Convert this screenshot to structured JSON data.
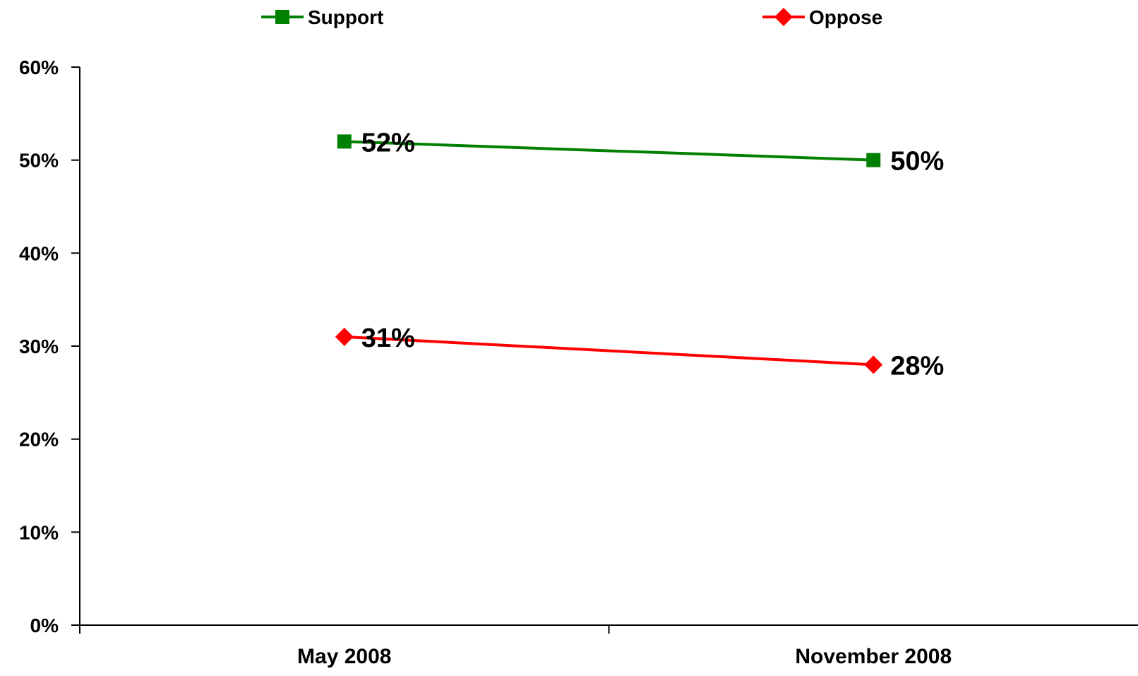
{
  "chart_data": {
    "type": "line",
    "categories": [
      "May 2008",
      "November 2008"
    ],
    "series": [
      {
        "name": "Support",
        "values": [
          52,
          50
        ],
        "labels": [
          "52%",
          "50%"
        ],
        "color": "#008000",
        "marker": "square"
      },
      {
        "name": "Oppose",
        "values": [
          31,
          28
        ],
        "labels": [
          "31%",
          "28%"
        ],
        "color": "#ff0000",
        "marker": "diamond"
      }
    ],
    "yticks": [
      {
        "value": 0,
        "label": "0%"
      },
      {
        "value": 10,
        "label": "10%"
      },
      {
        "value": 20,
        "label": "20%"
      },
      {
        "value": 30,
        "label": "30%"
      },
      {
        "value": 40,
        "label": "40%"
      },
      {
        "value": 50,
        "label": "50%"
      },
      {
        "value": 60,
        "label": "60%"
      }
    ],
    "ylim": [
      0,
      60
    ],
    "grid": false,
    "legend_position": "top"
  }
}
